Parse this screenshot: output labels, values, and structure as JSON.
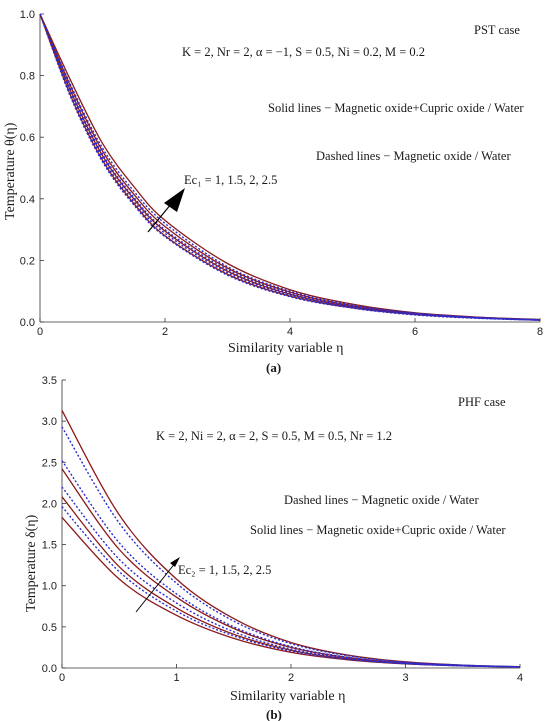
{
  "chart_data": [
    {
      "type": "line",
      "panel_label": "(a)",
      "xlabel": "Similarity variable η",
      "ylabel": "Temperature θ(η)",
      "xlim": [
        0,
        8
      ],
      "ylim": [
        0,
        1.0
      ],
      "xticks": [
        "0",
        "2",
        "4",
        "6",
        "8"
      ],
      "yticks": [
        "0.0",
        "0.2",
        "0.4",
        "0.6",
        "0.8",
        "1.0"
      ],
      "case_label": "PST case",
      "params": "K = 2,  Nr = 2,  α = −1, S = 0.5,  Ni = 0.2, M = 0.2",
      "legend_solid": "Solid lines − Magnetic oxide+Cupric oxide / Water",
      "legend_dashed": "Dashed lines − Magnetic oxide / Water",
      "arrow_label": "Ec₁ = 1, 1.5, 2, 2.5",
      "colors": {
        "solid": "#8b1a1a",
        "dashed": "#2c2cd0"
      },
      "series": [
        {
          "style": "solid",
          "x": [
            0,
            0.5,
            1,
            1.5,
            2,
            3,
            4,
            5,
            6,
            7,
            8
          ],
          "values": [
            1.0,
            0.78,
            0.58,
            0.44,
            0.33,
            0.19,
            0.105,
            0.058,
            0.03,
            0.016,
            0.008
          ]
        },
        {
          "style": "solid",
          "x": [
            0,
            0.5,
            1,
            1.5,
            2,
            3,
            4,
            5,
            6,
            7,
            8
          ],
          "values": [
            1.0,
            0.76,
            0.555,
            0.415,
            0.31,
            0.175,
            0.097,
            0.053,
            0.028,
            0.015,
            0.007
          ]
        },
        {
          "style": "solid",
          "x": [
            0,
            0.5,
            1,
            1.5,
            2,
            3,
            4,
            5,
            6,
            7,
            8
          ],
          "values": [
            1.0,
            0.745,
            0.54,
            0.4,
            0.295,
            0.165,
            0.09,
            0.049,
            0.026,
            0.014,
            0.007
          ]
        },
        {
          "style": "solid",
          "x": [
            0,
            0.5,
            1,
            1.5,
            2,
            3,
            4,
            5,
            6,
            7,
            8
          ],
          "values": [
            1.0,
            0.73,
            0.525,
            0.385,
            0.28,
            0.155,
            0.084,
            0.046,
            0.024,
            0.013,
            0.006
          ]
        },
        {
          "style": "dashed",
          "x": [
            0,
            0.5,
            1,
            1.5,
            2,
            3,
            4,
            5,
            6,
            7,
            8
          ],
          "values": [
            1.0,
            0.765,
            0.565,
            0.425,
            0.32,
            0.18,
            0.1,
            0.055,
            0.029,
            0.015,
            0.007
          ]
        },
        {
          "style": "dashed",
          "x": [
            0,
            0.5,
            1,
            1.5,
            2,
            3,
            4,
            5,
            6,
            7,
            8
          ],
          "values": [
            1.0,
            0.75,
            0.545,
            0.405,
            0.3,
            0.17,
            0.093,
            0.051,
            0.027,
            0.014,
            0.007
          ]
        },
        {
          "style": "dashed",
          "x": [
            0,
            0.5,
            1,
            1.5,
            2,
            3,
            4,
            5,
            6,
            7,
            8
          ],
          "values": [
            1.0,
            0.738,
            0.532,
            0.392,
            0.288,
            0.16,
            0.087,
            0.047,
            0.025,
            0.013,
            0.006
          ]
        },
        {
          "style": "dashed",
          "x": [
            0,
            0.5,
            1,
            1.5,
            2,
            3,
            4,
            5,
            6,
            7,
            8
          ],
          "values": [
            1.0,
            0.725,
            0.52,
            0.38,
            0.277,
            0.152,
            0.082,
            0.045,
            0.023,
            0.012,
            0.006
          ]
        }
      ]
    },
    {
      "type": "line",
      "panel_label": "(b)",
      "xlabel": "Similarity variable η",
      "ylabel": "Temperature δ(η)",
      "xlim": [
        0,
        4
      ],
      "ylim": [
        0,
        3.5
      ],
      "xticks": [
        "0",
        "1",
        "2",
        "3",
        "4"
      ],
      "yticks": [
        "0.0",
        "0.5",
        "1.0",
        "1.5",
        "2.0",
        "2.5",
        "3.0",
        "3.5"
      ],
      "case_label": "PHF case",
      "params": "K = 2,  Ni = 2,  α = 2, S = 0.5, M = 0.5,  Nr = 1.2",
      "legend_dashed": "Dashed lines − Magnetic oxide / Water",
      "legend_solid": "Solid lines − Magnetic oxide+Cupric oxide / Water",
      "arrow_label": "Ec₂ = 1, 1.5, 2, 2.5",
      "colors": {
        "solid": "#8b1a1a",
        "dashed": "#2c2cd0"
      },
      "series": [
        {
          "style": "solid",
          "x": [
            0,
            0.5,
            1,
            1.5,
            2,
            2.5,
            3,
            3.5,
            4
          ],
          "values": [
            1.83,
            1.08,
            0.64,
            0.36,
            0.19,
            0.1,
            0.05,
            0.025,
            0.012
          ]
        },
        {
          "style": "solid",
          "x": [
            0,
            0.5,
            1,
            1.5,
            2,
            2.5,
            3,
            3.5,
            4
          ],
          "values": [
            2.08,
            1.23,
            0.73,
            0.41,
            0.215,
            0.11,
            0.055,
            0.027,
            0.013
          ]
        },
        {
          "style": "solid",
          "x": [
            0,
            0.5,
            1,
            1.5,
            2,
            2.5,
            3,
            3.5,
            4
          ],
          "values": [
            2.42,
            1.44,
            0.86,
            0.48,
            0.25,
            0.125,
            0.06,
            0.03,
            0.014
          ]
        },
        {
          "style": "solid",
          "x": [
            0,
            0.5,
            1,
            1.5,
            2,
            2.5,
            3,
            3.5,
            4
          ],
          "values": [
            3.13,
            1.86,
            1.08,
            0.6,
            0.31,
            0.155,
            0.075,
            0.035,
            0.016
          ]
        },
        {
          "style": "dashed",
          "x": [
            0,
            0.5,
            1,
            1.5,
            2,
            2.5,
            3,
            3.5,
            4
          ],
          "values": [
            1.96,
            1.17,
            0.69,
            0.39,
            0.205,
            0.105,
            0.052,
            0.026,
            0.012
          ]
        },
        {
          "style": "dashed",
          "x": [
            0,
            0.5,
            1,
            1.5,
            2,
            2.5,
            3,
            3.5,
            4
          ],
          "values": [
            2.2,
            1.32,
            0.79,
            0.44,
            0.23,
            0.115,
            0.056,
            0.028,
            0.013
          ]
        },
        {
          "style": "dashed",
          "x": [
            0,
            0.5,
            1,
            1.5,
            2,
            2.5,
            3,
            3.5,
            4
          ],
          "values": [
            2.52,
            1.52,
            0.9,
            0.5,
            0.26,
            0.13,
            0.063,
            0.031,
            0.014
          ]
        },
        {
          "style": "dashed",
          "x": [
            0,
            0.5,
            1,
            1.5,
            2,
            2.5,
            3,
            3.5,
            4
          ],
          "values": [
            2.93,
            1.76,
            1.03,
            0.57,
            0.295,
            0.148,
            0.071,
            0.034,
            0.015
          ]
        }
      ]
    }
  ]
}
